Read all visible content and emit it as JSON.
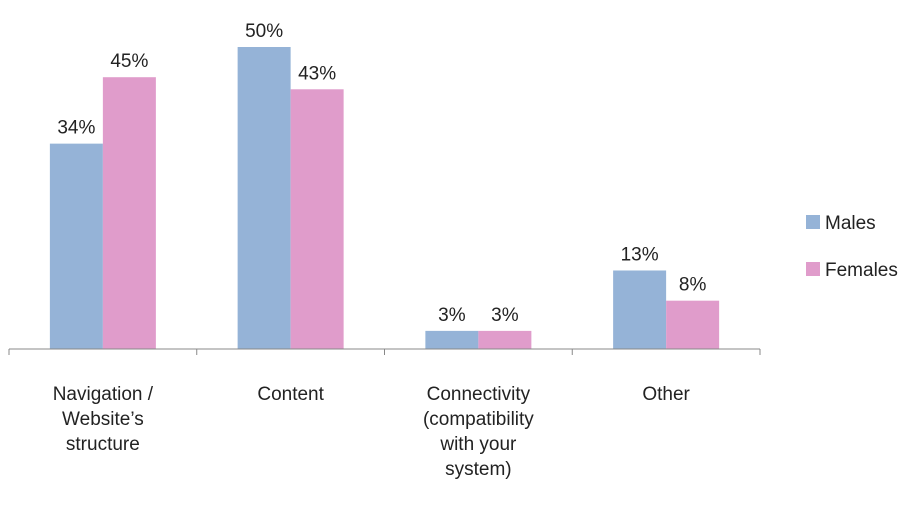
{
  "chart_data": {
    "type": "bar",
    "title": "",
    "xlabel": "",
    "ylabel": "",
    "ylim": [
      0,
      50
    ],
    "grid": false,
    "legend_position": "right",
    "categories": [
      [
        "Navigation /",
        "Website’s",
        "structure"
      ],
      [
        "Content"
      ],
      [
        "Connectivity",
        "(compatibility",
        "with your",
        "system)"
      ],
      [
        "Other"
      ]
    ],
    "series": [
      {
        "name": "Males",
        "color": "#95B3D7",
        "values": [
          34,
          50,
          3,
          13
        ],
        "labels": [
          "34%",
          "50%",
          "3%",
          "13%"
        ]
      },
      {
        "name": "Females",
        "color": "#E09CCB",
        "values": [
          45,
          43,
          3,
          8
        ],
        "labels": [
          "45%",
          "43%",
          "3%",
          "8%"
        ]
      }
    ]
  }
}
